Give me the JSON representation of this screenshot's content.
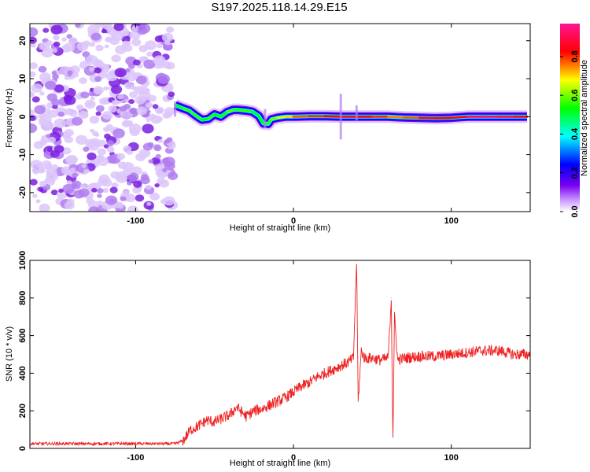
{
  "title": "S197.2025.118.14.29.E15",
  "chart_data": [
    {
      "type": "heatmap",
      "xlabel": "Height of straight line (km)",
      "ylabel": "Frequency (Hz)",
      "xlim": [
        -167,
        150
      ],
      "ylim": [
        -25,
        24.5
      ],
      "x_ticks": [
        -100,
        0,
        100
      ],
      "y_ticks": [
        -20,
        -10,
        0,
        10,
        20
      ],
      "colorbar": {
        "label": "Normalized spectral amplitude",
        "range": [
          0.0,
          0.97
        ],
        "ticks": [
          0.0,
          0.2,
          0.4,
          0.6,
          0.8
        ],
        "colors": [
          "#ffffff",
          "#7700ee",
          "#0000ff",
          "#00ffff",
          "#00ff00",
          "#ffff00",
          "#ff0000",
          "#ff1493"
        ]
      },
      "noise_region": {
        "x_range": [
          -167,
          -76
        ],
        "amplitude_approx": 0.05
      },
      "ridge": {
        "x": [
          -75,
          -70,
          -66,
          -62,
          -58,
          -54,
          -50,
          -46,
          -42,
          -38,
          -35,
          -30,
          -26,
          -22,
          -19,
          -16,
          -14,
          -10,
          -5,
          0,
          10,
          20,
          30,
          40,
          50,
          60,
          70,
          80,
          90,
          100,
          110,
          120,
          130,
          140,
          148
        ],
        "y": [
          3,
          2.2,
          1.6,
          0.3,
          -0.8,
          -0.6,
          0.6,
          0,
          1.2,
          1.8,
          1.8,
          1.6,
          1.3,
          0.2,
          -1.8,
          -1.9,
          -0.7,
          -0.3,
          0,
          0,
          0.1,
          0.1,
          0,
          0,
          0,
          0,
          -0.2,
          -0.3,
          -0.4,
          -0.3,
          0,
          0,
          0,
          0,
          0
        ],
        "amplitude": [
          0.45,
          0.6,
          0.55,
          0.6,
          0.55,
          0.55,
          0.6,
          0.5,
          0.6,
          0.6,
          0.55,
          0.6,
          0.55,
          0.5,
          0.6,
          0.55,
          0.6,
          0.65,
          0.7,
          0.75,
          0.85,
          0.8,
          0.9,
          0.85,
          0.85,
          0.8,
          0.75,
          0.85,
          0.9,
          0.8,
          0.95,
          0.95,
          0.95,
          0.9,
          0.85
        ]
      }
    },
    {
      "type": "line",
      "xlabel": "Height of straight line (km)",
      "ylabel": "SNR (10 * v/v)",
      "xlim": [
        -167,
        150
      ],
      "ylim": [
        0,
        1000
      ],
      "x_ticks": [
        -100,
        0,
        100
      ],
      "y_ticks": [
        0,
        200,
        400,
        600,
        800,
        1000
      ],
      "color": "#ee2222",
      "series": [
        {
          "x": [
            -167,
            -150,
            -130,
            -110,
            -90,
            -75,
            -70,
            -65,
            -60,
            -55,
            -50,
            -45,
            -40,
            -36,
            -30,
            -25,
            -20,
            -15,
            -10,
            -5,
            0,
            5,
            10,
            15,
            20,
            25,
            30,
            35,
            38,
            40,
            41,
            43,
            45,
            50,
            55,
            60,
            62,
            63,
            64,
            66,
            70,
            80,
            90,
            100,
            110,
            120,
            130,
            140,
            150
          ],
          "y": [
            25,
            25,
            25,
            25,
            25,
            25,
            40,
            100,
            120,
            150,
            140,
            160,
            180,
            220,
            170,
            200,
            210,
            230,
            250,
            270,
            300,
            330,
            350,
            380,
            400,
            420,
            440,
            460,
            480,
            1000,
            250,
            520,
            480,
            480,
            470,
            480,
            800,
            60,
            700,
            470,
            480,
            490,
            490,
            500,
            510,
            520,
            520,
            500,
            500
          ]
        }
      ],
      "noise_amplitude": 30
    }
  ]
}
